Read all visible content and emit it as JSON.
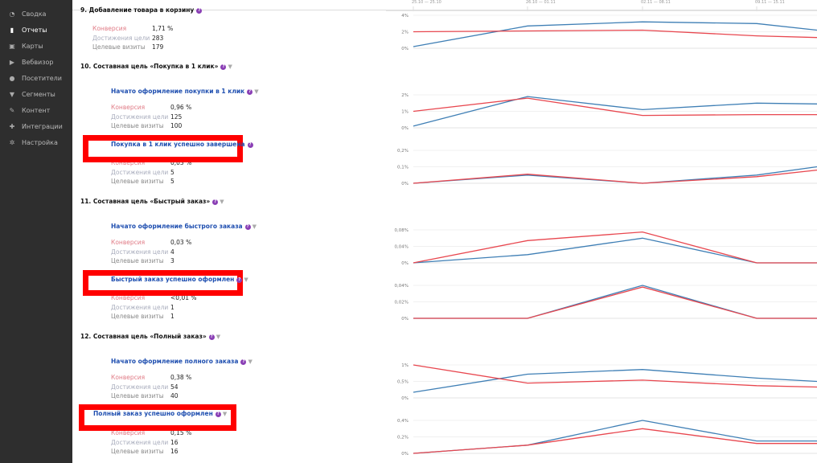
{
  "sidebar": {
    "items": [
      {
        "label": "Сводка",
        "icon": "dashboard-icon"
      },
      {
        "label": "Отчеты",
        "icon": "bar-chart-icon",
        "active": true
      },
      {
        "label": "Карты",
        "icon": "map-icon"
      },
      {
        "label": "Вебвизор",
        "icon": "play-icon"
      },
      {
        "label": "Посетители",
        "icon": "user-icon"
      },
      {
        "label": "Сегменты",
        "icon": "funnel-icon"
      },
      {
        "label": "Контент",
        "icon": "pencil-icon"
      },
      {
        "label": "Интеграции",
        "icon": "puzzle-icon"
      },
      {
        "label": "Настройка",
        "icon": "gear-icon"
      }
    ]
  },
  "labels": {
    "conversion": "Конверсия",
    "reaches": "Достижения цели",
    "visits": "Целевые визиты"
  },
  "goals": [
    {
      "title": "9.  Добавление товара в корзину",
      "stats": [
        "1,71 %",
        "283",
        "179"
      ]
    },
    {
      "title": "10.  Составная цель «Покупка в 1 клик»",
      "steps": [
        {
          "title": "Начато оформление покупки в 1 клик",
          "stats": [
            "0,96 %",
            "125",
            "100"
          ]
        },
        {
          "title": "Покупка в 1 клик успешно завершена",
          "stats": [
            "0,03 %",
            "5",
            "5"
          ],
          "highlighted": true
        }
      ]
    },
    {
      "title": "11.  Составная цель «Быстрый заказ»",
      "steps": [
        {
          "title": "Начато оформление быстрого заказа",
          "stats": [
            "0,03 %",
            "4",
            "3"
          ]
        },
        {
          "title": "Быстрый заказ успешно оформлен",
          "stats": [
            "<0,01 %",
            "1",
            "1"
          ],
          "highlighted": true
        }
      ]
    },
    {
      "title": "12.  Составная цель «Полный заказ»",
      "steps": [
        {
          "title": "Начато оформление полного заказа",
          "stats": [
            "0,38 %",
            "54",
            "40"
          ]
        },
        {
          "title": "Полный заказ успешно оформлен",
          "stats": [
            "0,15 %",
            "16",
            "16"
          ],
          "highlighted": true
        }
      ]
    }
  ],
  "colors": {
    "highlight": "#ff0000",
    "series_red": "#e8474f",
    "series_blue": "#3f7fb5",
    "title_blue": "#1f4fb0",
    "sidebar_bg": "#2e2e2e"
  },
  "chart_data": [
    {
      "type": "line",
      "categories": [
        "25.10 — 25.10",
        "26.10 — 01.11",
        "02.11 — 08.11",
        "09.11 — 15.11",
        ""
      ],
      "yticks": [
        "0%",
        "2%",
        "4%"
      ],
      "ylim": [
        0,
        4
      ],
      "grid": true,
      "series": [
        {
          "color": "#3f7fb5",
          "values": [
            0.2,
            2.7,
            3.2,
            3.0,
            2.2
          ]
        },
        {
          "color": "#e8474f",
          "values": [
            2.0,
            2.1,
            2.2,
            1.5,
            1.3
          ]
        }
      ]
    },
    {
      "type": "line",
      "yticks": [
        "0%",
        "1%",
        "2%"
      ],
      "ylim": [
        0,
        2
      ],
      "grid": true,
      "series": [
        {
          "color": "#3f7fb5",
          "values": [
            0.1,
            1.9,
            1.1,
            1.5,
            1.45
          ]
        },
        {
          "color": "#e8474f",
          "values": [
            1.0,
            1.8,
            0.75,
            0.8,
            0.8
          ]
        }
      ]
    },
    {
      "type": "line",
      "yticks": [
        "0%",
        "0,1%",
        "0,2%"
      ],
      "ylim": [
        0,
        0.2
      ],
      "grid": true,
      "series": [
        {
          "color": "#3f7fb5",
          "values": [
            0,
            0.05,
            0,
            0.05,
            0.1
          ]
        },
        {
          "color": "#e8474f",
          "values": [
            0,
            0.055,
            0,
            0.04,
            0.08
          ]
        }
      ]
    },
    {
      "type": "line",
      "yticks": [
        "0%",
        "0,04%",
        "0,08%"
      ],
      "ylim": [
        0,
        0.08
      ],
      "grid": true,
      "series": [
        {
          "color": "#3f7fb5",
          "values": [
            0,
            0.02,
            0.06,
            0,
            0
          ]
        },
        {
          "color": "#e8474f",
          "values": [
            0,
            0.054,
            0.075,
            0,
            0
          ]
        }
      ]
    },
    {
      "type": "line",
      "yticks": [
        "0%",
        "0,02%",
        "0,04%"
      ],
      "ylim": [
        0,
        0.04
      ],
      "grid": true,
      "series": [
        {
          "color": "#3f7fb5",
          "values": [
            0,
            0,
            0.04,
            0,
            0
          ]
        },
        {
          "color": "#e8474f",
          "values": [
            0,
            0,
            0.038,
            0,
            0
          ]
        }
      ]
    },
    {
      "type": "line",
      "yticks": [
        "0%",
        "0,5%",
        "1%"
      ],
      "ylim": [
        0,
        1
      ],
      "grid": true,
      "series": [
        {
          "color": "#3f7fb5",
          "values": [
            0.17,
            0.72,
            0.86,
            0.6,
            0.5
          ]
        },
        {
          "color": "#e8474f",
          "values": [
            1.0,
            0.45,
            0.54,
            0.37,
            0.33
          ]
        }
      ]
    },
    {
      "type": "line",
      "yticks": [
        "0%",
        "0,2%",
        "0,4%"
      ],
      "ylim": [
        0,
        0.4
      ],
      "grid": true,
      "series": [
        {
          "color": "#3f7fb5",
          "values": [
            0,
            0.1,
            0.4,
            0.15,
            0.15
          ]
        },
        {
          "color": "#e8474f",
          "values": [
            0,
            0.1,
            0.3,
            0.12,
            0.12
          ]
        }
      ]
    }
  ]
}
